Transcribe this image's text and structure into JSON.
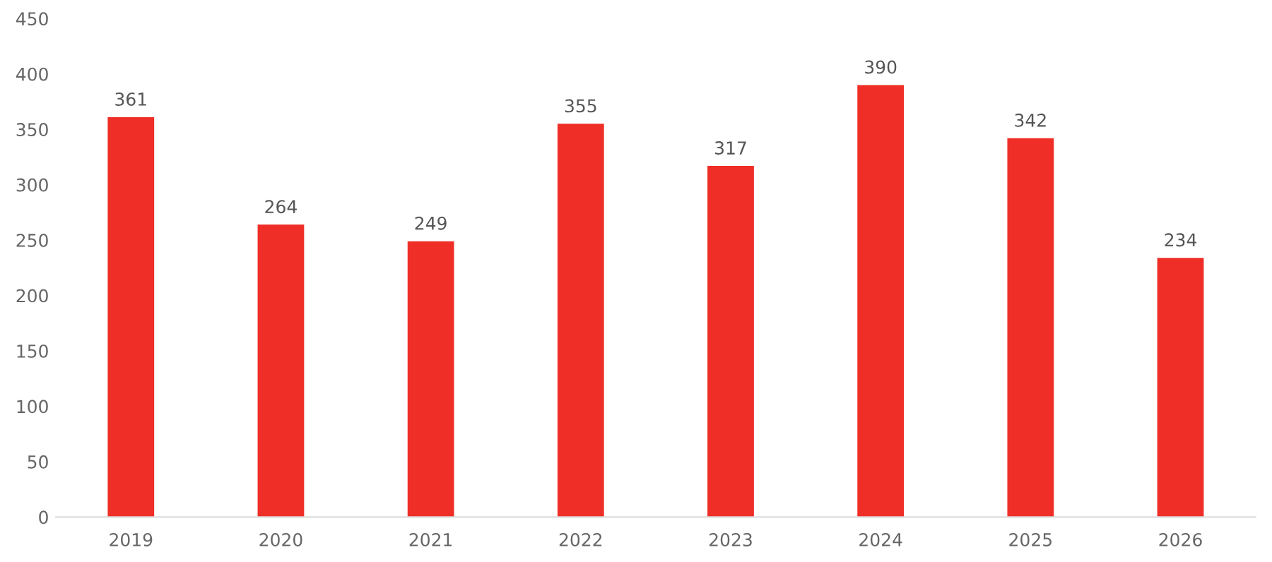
{
  "chart_data": {
    "type": "bar",
    "categories": [
      "2019",
      "2020",
      "2021",
      "2022",
      "2023",
      "2024",
      "2025",
      "2026"
    ],
    "values": [
      361,
      264,
      249,
      355,
      317,
      390,
      342,
      234
    ],
    "color": "#ee2e27",
    "ylim": [
      0,
      450
    ],
    "yticks": [
      0,
      50,
      100,
      150,
      200,
      250,
      300,
      350,
      400,
      450
    ],
    "data_labels": true,
    "grid": false,
    "legend": false
  }
}
